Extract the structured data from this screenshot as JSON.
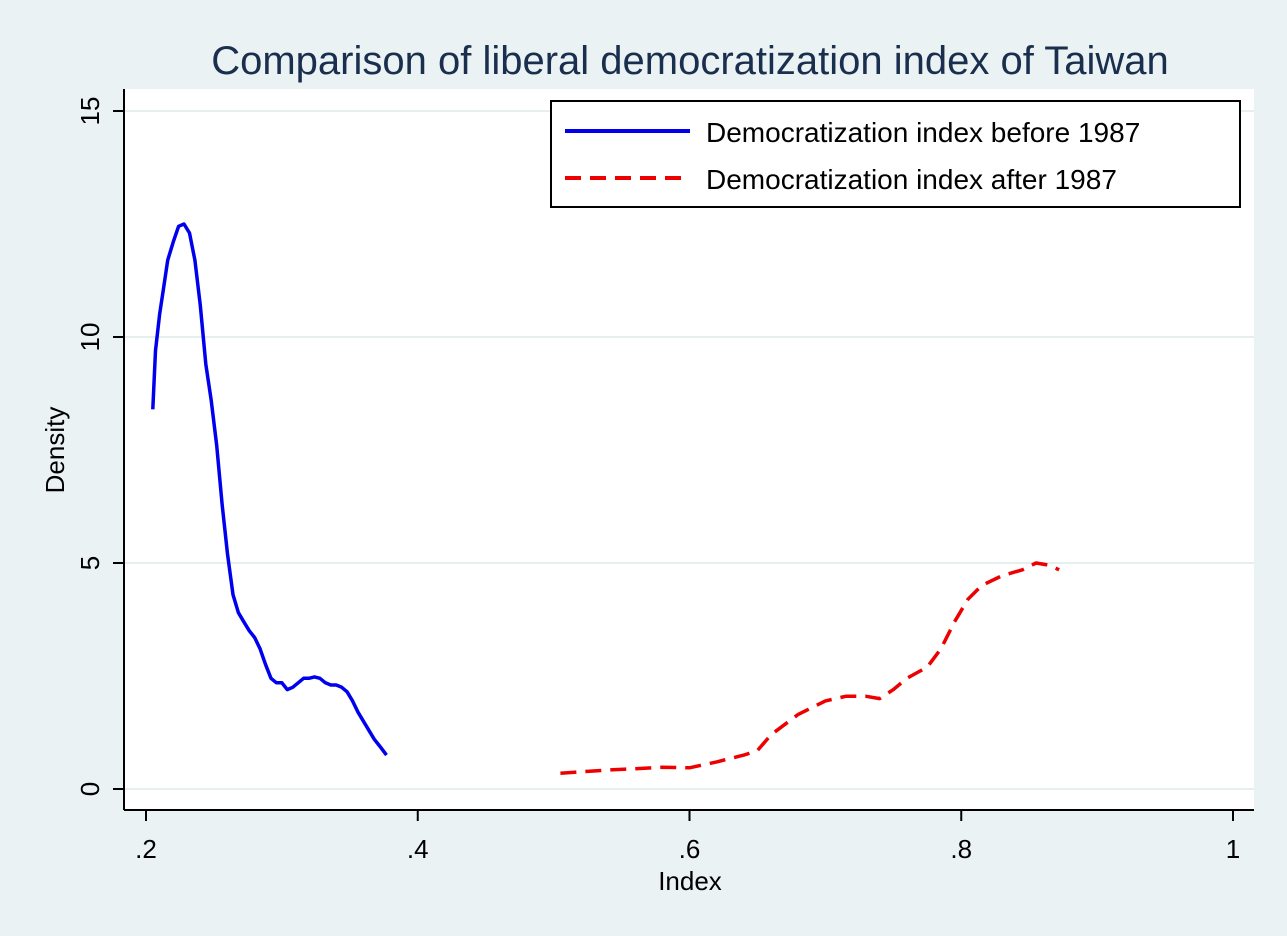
{
  "chart_data": {
    "type": "line",
    "title": "Comparison of liberal democratization index of Taiwan",
    "xlabel": "Index",
    "ylabel": "Density",
    "xlim": [
      0.2,
      1.0
    ],
    "ylim": [
      0,
      15
    ],
    "x_ticks": [
      {
        "value": 0.2,
        "label": ".2"
      },
      {
        "value": 0.4,
        "label": ".4"
      },
      {
        "value": 0.6,
        "label": ".6"
      },
      {
        "value": 0.8,
        "label": ".8"
      },
      {
        "value": 1.0,
        "label": "1"
      }
    ],
    "y_ticks": [
      {
        "value": 0,
        "label": "0"
      },
      {
        "value": 5,
        "label": "5"
      },
      {
        "value": 10,
        "label": "10"
      },
      {
        "value": 15,
        "label": "15"
      }
    ],
    "grid": true,
    "legend_position": "top-right",
    "series": [
      {
        "name": "Democratization index before 1987",
        "color": "#0000ee",
        "dash": "solid",
        "points": [
          [
            0.205,
            8.4
          ],
          [
            0.207,
            9.7
          ],
          [
            0.21,
            10.5
          ],
          [
            0.213,
            11.1
          ],
          [
            0.216,
            11.7
          ],
          [
            0.22,
            12.1
          ],
          [
            0.224,
            12.45
          ],
          [
            0.228,
            12.5
          ],
          [
            0.232,
            12.3
          ],
          [
            0.236,
            11.7
          ],
          [
            0.24,
            10.7
          ],
          [
            0.244,
            9.4
          ],
          [
            0.248,
            8.6
          ],
          [
            0.252,
            7.6
          ],
          [
            0.256,
            6.3
          ],
          [
            0.26,
            5.2
          ],
          [
            0.264,
            4.3
          ],
          [
            0.268,
            3.9
          ],
          [
            0.272,
            3.7
          ],
          [
            0.276,
            3.5
          ],
          [
            0.28,
            3.35
          ],
          [
            0.284,
            3.1
          ],
          [
            0.288,
            2.75
          ],
          [
            0.292,
            2.45
          ],
          [
            0.296,
            2.35
          ],
          [
            0.3,
            2.35
          ],
          [
            0.304,
            2.2
          ],
          [
            0.308,
            2.25
          ],
          [
            0.312,
            2.35
          ],
          [
            0.316,
            2.45
          ],
          [
            0.32,
            2.45
          ],
          [
            0.324,
            2.48
          ],
          [
            0.328,
            2.45
          ],
          [
            0.332,
            2.35
          ],
          [
            0.336,
            2.3
          ],
          [
            0.34,
            2.3
          ],
          [
            0.344,
            2.25
          ],
          [
            0.348,
            2.15
          ],
          [
            0.352,
            1.95
          ],
          [
            0.356,
            1.7
          ],
          [
            0.36,
            1.5
          ],
          [
            0.364,
            1.3
          ],
          [
            0.368,
            1.1
          ],
          [
            0.372,
            0.95
          ],
          [
            0.377,
            0.75
          ]
        ]
      },
      {
        "name": "Democratization index after 1987",
        "color": "#ee0000",
        "dash": "dashed",
        "points": [
          [
            0.505,
            0.35
          ],
          [
            0.52,
            0.38
          ],
          [
            0.54,
            0.42
          ],
          [
            0.56,
            0.45
          ],
          [
            0.58,
            0.48
          ],
          [
            0.6,
            0.47
          ],
          [
            0.62,
            0.6
          ],
          [
            0.64,
            0.75
          ],
          [
            0.65,
            0.85
          ],
          [
            0.66,
            1.2
          ],
          [
            0.68,
            1.65
          ],
          [
            0.7,
            1.95
          ],
          [
            0.715,
            2.05
          ],
          [
            0.73,
            2.05
          ],
          [
            0.74,
            2.0
          ],
          [
            0.75,
            2.2
          ],
          [
            0.76,
            2.45
          ],
          [
            0.775,
            2.7
          ],
          [
            0.785,
            3.1
          ],
          [
            0.795,
            3.7
          ],
          [
            0.805,
            4.2
          ],
          [
            0.815,
            4.5
          ],
          [
            0.83,
            4.72
          ],
          [
            0.845,
            4.85
          ],
          [
            0.855,
            5.0
          ],
          [
            0.865,
            4.95
          ],
          [
            0.872,
            4.85
          ]
        ]
      }
    ]
  }
}
